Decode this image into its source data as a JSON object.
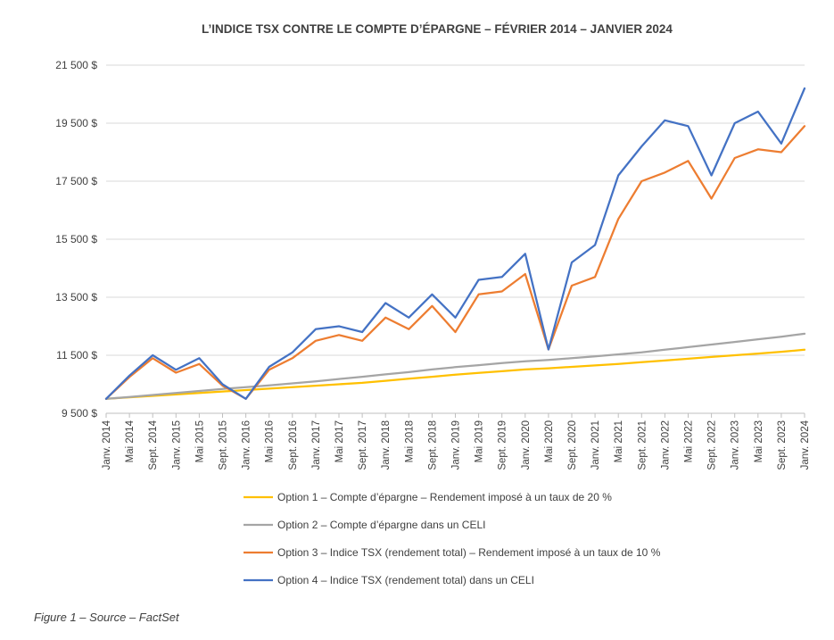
{
  "caption": "Figure 1 – Source – FactSet",
  "chart_data": {
    "type": "line",
    "title": "L’INDICE TSX CONTRE LE COMPTE D’ÉPARGNE – FÉVRIER 2014 – JANVIER 2024",
    "xlabel": "",
    "ylabel": "",
    "ylim": [
      9500,
      21500
    ],
    "yticks": [
      9500,
      11500,
      13500,
      15500,
      17500,
      19500,
      21500
    ],
    "ytick_labels": [
      "9 500 $",
      "11 500 $",
      "13 500 $",
      "15 500 $",
      "17 500 $",
      "19 500 $",
      "21 500 $"
    ],
    "grid": "horizontal",
    "legend_position": "bottom",
    "x": [
      "Janv. 2014",
      "Mai 2014",
      "Sept. 2014",
      "Janv. 2015",
      "Mai 2015",
      "Sept. 2015",
      "Janv. 2016",
      "Mai 2016",
      "Sept. 2016",
      "Janv. 2017",
      "Mai 2017",
      "Sept. 2017",
      "Janv. 2018",
      "Mai 2018",
      "Sept. 2018",
      "Janv. 2019",
      "Mai 2019",
      "Sept. 2019",
      "Janv. 2020",
      "Mai 2020",
      "Sept. 2020",
      "Janv. 2021",
      "Mai 2021",
      "Sept. 2021",
      "Janv. 2022",
      "Mai 2022",
      "Sept. 2022",
      "Janv. 2023",
      "Mai 2023",
      "Sept. 2023",
      "Janv. 2024"
    ],
    "series": [
      {
        "name": "Option 1 – Compte d’épargne – Rendement imposé à un taux de 20 %",
        "color": "#FFC000",
        "values": [
          10000,
          10050,
          10100,
          10150,
          10200,
          10250,
          10300,
          10350,
          10400,
          10450,
          10500,
          10550,
          10620,
          10690,
          10760,
          10830,
          10890,
          10950,
          11010,
          11050,
          11100,
          11150,
          11200,
          11260,
          11320,
          11380,
          11440,
          11500,
          11560,
          11620,
          11690
        ]
      },
      {
        "name": "Option 2 – Compte d’épargne dans un CELI",
        "color": "#A5A5A5",
        "values": [
          10000,
          10060,
          10130,
          10200,
          10270,
          10340,
          10400,
          10460,
          10530,
          10600,
          10680,
          10760,
          10840,
          10920,
          11010,
          11090,
          11160,
          11230,
          11290,
          11340,
          11400,
          11460,
          11530,
          11600,
          11690,
          11780,
          11870,
          11960,
          12050,
          12140,
          12240
        ]
      },
      {
        "name": "Option 3 – Indice TSX (rendement total) – Rendement imposé à un taux de 10 %",
        "color": "#ED7D31",
        "values": [
          10000,
          10750,
          11400,
          10900,
          11200,
          10450,
          10000,
          11000,
          11400,
          12000,
          12200,
          12000,
          12800,
          12400,
          13200,
          12300,
          13600,
          13700,
          14300,
          11700,
          13900,
          14200,
          16200,
          17500,
          17800,
          18200,
          16900,
          18300,
          18600,
          18500,
          19400
        ]
      },
      {
        "name": "Option 4 – Indice TSX (rendement total) dans un CELI",
        "color": "#4472C4",
        "values": [
          10000,
          10800,
          11500,
          11000,
          11400,
          10500,
          10000,
          11100,
          11600,
          12400,
          12500,
          12300,
          13300,
          12800,
          13600,
          12800,
          14100,
          14200,
          15000,
          11700,
          14700,
          15300,
          17700,
          18700,
          19600,
          19400,
          17700,
          19500,
          19900,
          18800,
          20700
        ]
      }
    ]
  }
}
